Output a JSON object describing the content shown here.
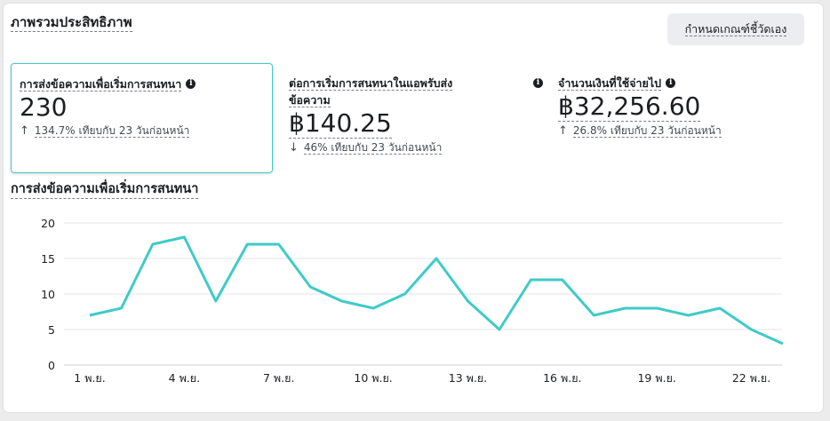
{
  "overview": {
    "title": "ภาพรวมประสิทธิภาพ",
    "custom_button": "กำหนดเกณฑ์ชี้วัดเอง"
  },
  "metrics": [
    {
      "label": "การส่งข้อความเพื่อเริ่มการสนทนา",
      "value": "230",
      "direction": "up",
      "change": "134.7% เทียบกับ 23 วันก่อนหน้า",
      "selected": true
    },
    {
      "label": "ต่อการเริ่มการสนทนาในแอพรับส่ง ข้อความ",
      "label_line1": "ต่อการเริ่มการสนทนาในแอพรับส่ง",
      "label_line2": "ข้อความ",
      "value": "฿140.25",
      "direction": "down",
      "change": "46% เทียบกับ 23 วันก่อนหน้า",
      "selected": false
    },
    {
      "label": "จำนวนเงินที่ใช้จ่ายไป",
      "value": "฿32,256.60",
      "direction": "up",
      "change": "26.8% เทียบกับ 23 วันก่อนหน้า",
      "selected": false
    }
  ],
  "icons": {
    "info": "info-icon",
    "up": "arrow-up-icon",
    "down": "arrow-down-icon"
  },
  "colors": {
    "line": "#3ecbc7",
    "selected_border": "#3ecbc7",
    "grid": "#e4e6eb"
  },
  "chart_data": {
    "type": "line",
    "title": "การส่งข้อความเพื่อเริ่มการสนทนา",
    "xlabel": "",
    "ylabel": "",
    "x": [
      "1 พ.ย.",
      "2 พ.ย.",
      "3 พ.ย.",
      "4 พ.ย.",
      "5 พ.ย.",
      "6 พ.ย.",
      "7 พ.ย.",
      "8 พ.ย.",
      "9 พ.ย.",
      "10 พ.ย.",
      "11 พ.ย.",
      "12 พ.ย.",
      "13 พ.ย.",
      "14 พ.ย.",
      "15 พ.ย.",
      "16 พ.ย.",
      "17 พ.ย.",
      "18 พ.ย.",
      "19 พ.ย.",
      "20 พ.ย.",
      "21 พ.ย.",
      "22 พ.ย.",
      "23 พ.ย."
    ],
    "values": [
      7,
      8,
      17,
      18,
      9,
      17,
      17,
      11,
      9,
      8,
      10,
      15,
      9,
      5,
      12,
      12,
      7,
      8,
      8,
      7,
      8,
      5,
      3
    ],
    "x_tick_labels": [
      "1 พ.ย.",
      "4 พ.ย.",
      "7 พ.ย.",
      "10 พ.ย.",
      "13 พ.ย.",
      "16 พ.ย.",
      "19 พ.ย.",
      "22 พ.ย."
    ],
    "y_ticks": [
      "0",
      "5",
      "10",
      "15",
      "20"
    ],
    "ylim": [
      0,
      20
    ],
    "grid": true,
    "legend": "none"
  }
}
